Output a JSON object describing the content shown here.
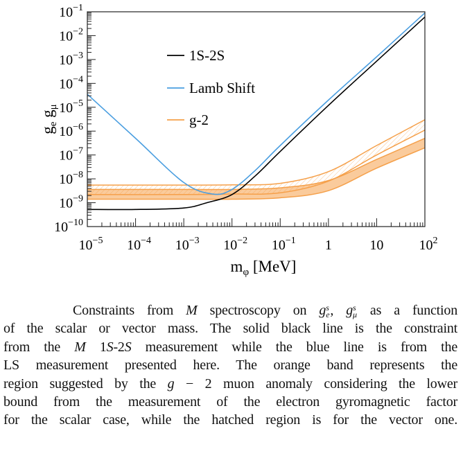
{
  "chart_data": {
    "type": "line",
    "xlabel": {
      "main": "m",
      "sub": "φ",
      "rest": " [MeV]"
    },
    "ylabel": {
      "a": "g",
      "a_sub": "e",
      "b": "g",
      "b_sub": "μ"
    },
    "xscale": "log",
    "yscale": "log",
    "xlim": [
      1e-05,
      100
    ],
    "ylim": [
      1e-10,
      0.1
    ],
    "xticks": [
      {
        "v": 1e-05,
        "m": "10",
        "e": "−5"
      },
      {
        "v": 0.0001,
        "m": "10",
        "e": "−4"
      },
      {
        "v": 0.001,
        "m": "10",
        "e": "−3"
      },
      {
        "v": 0.01,
        "m": "10",
        "e": "−2"
      },
      {
        "v": 0.1,
        "m": "10",
        "e": "−1"
      },
      {
        "v": 1,
        "m": "1",
        "e": ""
      },
      {
        "v": 10,
        "m": "10",
        "e": ""
      },
      {
        "v": 100,
        "m": "10",
        "e": "2"
      }
    ],
    "yticks": [
      {
        "v": 0.1,
        "m": "10",
        "e": "−1"
      },
      {
        "v": 0.01,
        "m": "10",
        "e": "−2"
      },
      {
        "v": 0.001,
        "m": "10",
        "e": "−3"
      },
      {
        "v": 0.0001,
        "m": "10",
        "e": "−4"
      },
      {
        "v": 1e-05,
        "m": "10",
        "e": "−5"
      },
      {
        "v": 1e-06,
        "m": "10",
        "e": "−6"
      },
      {
        "v": 1e-07,
        "m": "10",
        "e": "−7"
      },
      {
        "v": 1e-08,
        "m": "10",
        "e": "−8"
      },
      {
        "v": 1e-09,
        "m": "10",
        "e": "−9"
      },
      {
        "v": 1e-10,
        "m": "10",
        "e": "−10"
      }
    ],
    "legend_position": "upper-center",
    "series": [
      {
        "name": "1S-2S",
        "color": "#000000",
        "x": [
          1e-05,
          0.0001,
          0.001,
          0.003,
          0.01,
          0.03,
          0.1,
          1,
          10,
          100
        ],
        "y": [
          5.2e-10,
          5.2e-10,
          6e-10,
          1e-09,
          2.2e-09,
          1.3e-08,
          1.4e-07,
          1.2e-05,
          0.00085,
          0.06
        ]
      },
      {
        "name": "Lamb Shift",
        "color": "#4a9ee0",
        "x": [
          1e-05,
          0.0001,
          0.001,
          0.004,
          0.01,
          0.03,
          0.1,
          1,
          10,
          100
        ],
        "y": [
          3.5e-05,
          5e-07,
          7e-09,
          2.3e-09,
          3.6e-09,
          2.2e-08,
          2.5e-07,
          2e-05,
          0.0013,
          0.09
        ]
      }
    ],
    "bands": [
      {
        "name": "g-2",
        "variant": "vector (hatched)",
        "color": "#f5a04a",
        "x": [
          1e-05,
          0.001,
          0.01,
          0.1,
          1,
          10,
          100
        ],
        "lower": [
          2.2e-09,
          2.2e-09,
          2.3e-09,
          2.6e-09,
          8e-09,
          1e-07,
          1.1e-06
        ],
        "upper": [
          5.5e-09,
          5.5e-09,
          5.6e-09,
          6.5e-09,
          2e-08,
          2.5e-07,
          3e-06
        ]
      },
      {
        "name": "g-2",
        "variant": "scalar (filled)",
        "color": "#f5a04a",
        "x": [
          1e-05,
          0.001,
          0.01,
          0.1,
          1,
          10,
          100
        ],
        "lower": [
          1.4e-09,
          1.4e-09,
          1.4e-09,
          1.6e-09,
          3.2e-09,
          2.8e-08,
          2e-07
        ],
        "upper": [
          3.6e-09,
          3.6e-09,
          3.6e-09,
          4.2e-09,
          8.5e-09,
          6.5e-08,
          5e-07
        ]
      }
    ],
    "legend": [
      "1S-2S",
      "Lamb Shift",
      "g-2"
    ]
  },
  "caption": {
    "lines": [
      [
        {
          "t": "Constraints from "
        },
        {
          "t": "M",
          "i": true
        },
        {
          "t": " spectroscopy on "
        },
        {
          "t": "g",
          "i": true,
          "sup": "s",
          "sub": "e"
        },
        {
          "t": ", "
        },
        {
          "t": "g",
          "i": true,
          "sup": "s",
          "sub": "μ"
        },
        {
          "t": " as a function"
        }
      ],
      [
        {
          "t": "of the scalar or vector mass. The solid black line is the constraint"
        }
      ],
      [
        {
          "t": "from the "
        },
        {
          "t": "M",
          "i": true
        },
        {
          "t": " 1"
        },
        {
          "t": "S",
          "i": true
        },
        {
          "t": "-2"
        },
        {
          "t": "S",
          "i": true
        },
        {
          "t": " measurement        while the blue line is from the"
        }
      ],
      [
        {
          "t": "LS measurement presented here. The orange band represents the"
        }
      ],
      [
        {
          "t": "region suggested by the "
        },
        {
          "t": "g",
          "i": true
        },
        {
          "t": " − 2 muon anomaly considering the lower"
        }
      ],
      [
        {
          "t": "bound from the measurement of the electron gyromagnetic factor"
        }
      ],
      [
        {
          "t": "for the scalar case, while the hatched region is for the vector one."
        }
      ]
    ]
  }
}
